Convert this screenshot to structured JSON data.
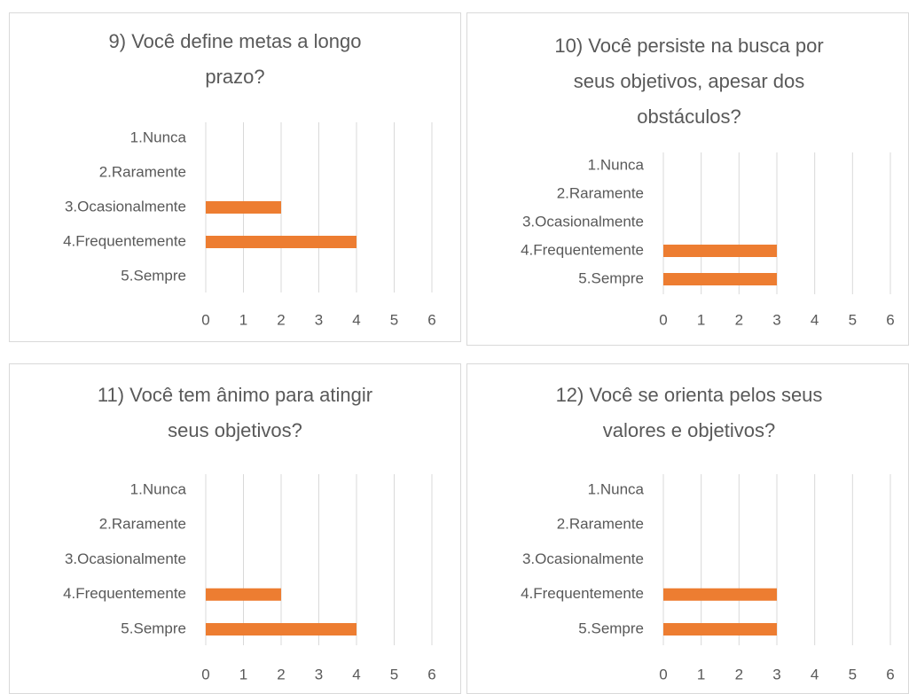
{
  "chart_data": [
    {
      "type": "bar",
      "title": "9) Você define metas a longo prazo?",
      "categories": [
        "1.Nunca",
        "2.Raramente",
        "3.Ocasionalmente",
        "4.Frequentemente",
        "5.Sempre"
      ],
      "values": [
        0,
        0,
        2,
        4,
        0
      ],
      "color": "#ed7d31",
      "xlim": [
        0,
        6
      ],
      "xticks": [
        0,
        1,
        2,
        3,
        4,
        5,
        6
      ],
      "grid": true
    },
    {
      "type": "bar",
      "title": "10) Você persiste na busca por seus objetivos, apesar dos obstáculos?",
      "categories": [
        "1.Nunca",
        "2.Raramente",
        "3.Ocasionalmente",
        "4.Frequentemente",
        "5.Sempre"
      ],
      "values": [
        0,
        0,
        0,
        3,
        3
      ],
      "color": "#ed7d31",
      "xlim": [
        0,
        6
      ],
      "xticks": [
        0,
        1,
        2,
        3,
        4,
        5,
        6
      ],
      "grid": true
    },
    {
      "type": "bar",
      "title": "11) Você tem ânimo para atingir seus objetivos?",
      "categories": [
        "1.Nunca",
        "2.Raramente",
        "3.Ocasionalmente",
        "4.Frequentemente",
        "5.Sempre"
      ],
      "values": [
        0,
        0,
        0,
        2,
        4
      ],
      "color": "#ed7d31",
      "xlim": [
        0,
        6
      ],
      "xticks": [
        0,
        1,
        2,
        3,
        4,
        5,
        6
      ],
      "grid": true
    },
    {
      "type": "bar",
      "title": "12) Você se orienta pelos seus valores e objetivos?",
      "categories": [
        "1.Nunca",
        "2.Raramente",
        "3.Ocasionalmente",
        "4.Frequentemente",
        "5.Sempre"
      ],
      "values": [
        0,
        0,
        0,
        3,
        3
      ],
      "color": "#ed7d31",
      "xlim": [
        0,
        6
      ],
      "xticks": [
        0,
        1,
        2,
        3,
        4,
        5,
        6
      ],
      "grid": true
    }
  ]
}
